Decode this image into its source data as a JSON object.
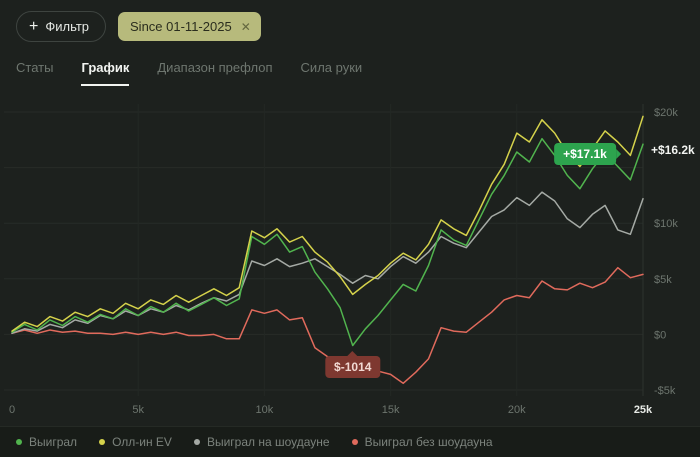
{
  "header": {
    "filter_plus": "+",
    "filter_label": "Фильтр",
    "date_chip_label": "Since 01-11-2025",
    "date_chip_close": "✕"
  },
  "tabs": [
    {
      "label": "Статы",
      "active": false
    },
    {
      "label": "График",
      "active": true
    },
    {
      "label": "Диапазон префлоп",
      "active": false
    },
    {
      "label": "Сила руки",
      "active": false
    }
  ],
  "chart_data": {
    "type": "line",
    "title": "",
    "xlabel": "",
    "ylabel": "",
    "xlim": [
      0,
      25
    ],
    "ylim": [
      -5,
      20
    ],
    "y_unit": "$k",
    "grid": true,
    "grid_color": "#272c28",
    "grid_color_v": "#232824",
    "boundary_color": "#2d322e",
    "tick_color": "#6d756e",
    "tick_highlight_color": "#e8ebe7",
    "x": [
      0,
      0.5,
      1,
      1.5,
      2,
      2.5,
      3,
      3.5,
      4,
      4.5,
      5,
      5.5,
      6,
      6.5,
      7,
      7.5,
      8,
      8.5,
      9,
      9.5,
      10,
      10.5,
      11,
      11.5,
      12,
      12.5,
      13,
      13.5,
      14,
      14.5,
      15,
      15.5,
      16,
      16.5,
      17,
      17.5,
      18,
      18.5,
      19,
      19.5,
      20,
      20.5,
      21,
      21.5,
      22,
      22.5,
      23,
      23.5,
      24,
      24.5,
      25
    ],
    "series": [
      {
        "id": "won",
        "name": "Выиграл",
        "color": "#51b44e",
        "values": [
          0.2,
          0.9,
          0.4,
          1.3,
          0.8,
          1.6,
          1.1,
          1.8,
          1.4,
          2.3,
          1.7,
          2.5,
          2.0,
          2.8,
          2.1,
          2.7,
          3.3,
          2.6,
          3.2,
          8.8,
          8.1,
          9.0,
          7.4,
          7.9,
          5.6,
          4.1,
          2.4,
          -1.0,
          0.5,
          1.7,
          3.1,
          4.5,
          3.9,
          6.2,
          9.4,
          8.5,
          8.0,
          10.3,
          12.6,
          14.3,
          16.4,
          15.5,
          17.6,
          16.1,
          14.3,
          13.1,
          14.9,
          16.3,
          15.1,
          13.9,
          17.1
        ]
      },
      {
        "id": "allin-ev",
        "name": "Олл-ин EV",
        "color": "#d5d24b",
        "values": [
          0.3,
          1.1,
          0.7,
          1.6,
          1.2,
          2.0,
          1.6,
          2.3,
          1.9,
          2.8,
          2.3,
          3.1,
          2.7,
          3.5,
          2.9,
          3.5,
          4.1,
          3.5,
          4.2,
          9.3,
          8.7,
          9.5,
          8.3,
          8.8,
          7.4,
          6.5,
          5.2,
          3.6,
          4.5,
          5.3,
          6.4,
          7.3,
          6.7,
          8.1,
          10.3,
          9.5,
          8.9,
          11.1,
          13.5,
          15.3,
          18.1,
          17.3,
          19.3,
          18.1,
          16.3,
          15.1,
          16.7,
          18.3,
          17.3,
          16.1,
          19.6
        ]
      },
      {
        "id": "won-showdown",
        "name": "Выиграл на шоудауне",
        "color": "#a5aaa5",
        "values": [
          0.1,
          0.5,
          0.3,
          0.9,
          0.6,
          1.3,
          1.0,
          1.7,
          1.4,
          2.1,
          1.7,
          2.3,
          2.0,
          2.6,
          2.2,
          2.8,
          3.3,
          3.0,
          3.6,
          6.6,
          6.2,
          6.8,
          6.1,
          6.4,
          6.8,
          6.1,
          5.4,
          4.6,
          5.3,
          5.0,
          6.1,
          7.0,
          6.4,
          7.4,
          8.8,
          8.2,
          7.8,
          9.2,
          10.6,
          11.2,
          12.3,
          11.6,
          12.8,
          12.0,
          10.4,
          9.6,
          10.8,
          11.6,
          9.4,
          9.0,
          12.2
        ]
      },
      {
        "id": "won-no-showdown",
        "name": "Выиграл без шоудауна",
        "color": "#e06a5c",
        "values": [
          0.1,
          0.4,
          0.1,
          0.4,
          0.2,
          0.3,
          0.1,
          0.1,
          0.0,
          0.2,
          0.0,
          0.2,
          0.0,
          0.2,
          -0.1,
          -0.1,
          0.0,
          -0.4,
          -0.4,
          2.2,
          1.9,
          2.2,
          1.3,
          1.5,
          -1.2,
          -2.0,
          -3.0,
          -3.2,
          -2.9,
          -3.3,
          -3.6,
          -4.4,
          -3.4,
          -2.2,
          0.6,
          0.3,
          0.2,
          1.1,
          2.0,
          3.1,
          3.5,
          3.3,
          4.8,
          4.1,
          4.0,
          4.6,
          4.2,
          4.7,
          6.0,
          5.1,
          5.4
        ]
      }
    ],
    "draw_order": [
      3,
      2,
      0,
      1
    ],
    "y_ticks": [
      {
        "value": 20,
        "label": "$20k"
      },
      {
        "value": 15,
        "label": ""
      },
      {
        "value": 10,
        "label": "$10k"
      },
      {
        "value": 5,
        "label": "$5k"
      },
      {
        "value": 0,
        "label": "$0"
      },
      {
        "value": -5,
        "label": "-$5k"
      }
    ],
    "x_ticks": [
      {
        "value": 0,
        "label": "0",
        "highlight": false
      },
      {
        "value": 5,
        "label": "5k",
        "highlight": false
      },
      {
        "value": 10,
        "label": "10k",
        "highlight": false
      },
      {
        "value": 15,
        "label": "15k",
        "highlight": false
      },
      {
        "value": 20,
        "label": "20k",
        "highlight": false
      },
      {
        "value": 25,
        "label": "25k",
        "highlight": true
      }
    ],
    "annotations": [
      {
        "el": "ann-min",
        "text": "$-1014",
        "x": 13.5,
        "y": -1.0,
        "placement": "below",
        "style": "negative"
      },
      {
        "el": "ann-cur",
        "text": "+$17.1k",
        "x": 22.7,
        "y": 16.2,
        "placement": "center",
        "style": "positive"
      },
      {
        "el": "ann-axis",
        "text": "+$16.2k",
        "x": 25,
        "y": 16.6,
        "placement": "right",
        "style": "plain"
      }
    ],
    "legend_position": "bottom"
  }
}
